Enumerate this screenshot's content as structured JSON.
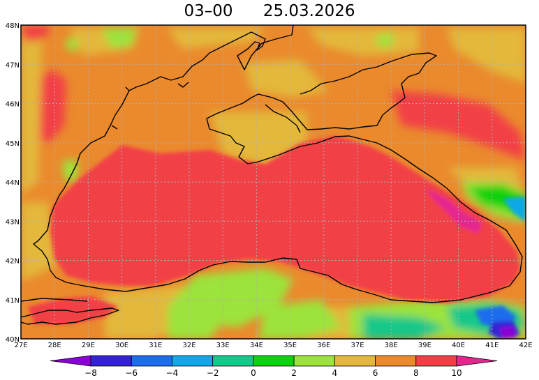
{
  "title": {
    "time": "03–00",
    "date": "25.03.2026"
  },
  "map": {
    "lat_labels": [
      "48N",
      "47N",
      "46N",
      "45N",
      "44N",
      "43N",
      "42N",
      "41N",
      "40N"
    ],
    "lon_labels": [
      "27E",
      "28E",
      "29E",
      "30E",
      "31E",
      "32E",
      "33E",
      "34E",
      "35E",
      "36E",
      "37E",
      "38E",
      "39E",
      "40E",
      "41E",
      "42E"
    ],
    "grid": true
  },
  "colorbar": {
    "ticks": [
      "-8",
      "-6",
      "-4",
      "-2",
      "0",
      "2",
      "4",
      "6",
      "8",
      "10"
    ],
    "colors": [
      "#8a00d4",
      "#3322d6",
      "#1c6cee",
      "#11a8e8",
      "#14c889",
      "#0fd10f",
      "#9ce33a",
      "#e3b83a",
      "#ea8a2d",
      "#f23f46",
      "#e4268f"
    ]
  }
}
